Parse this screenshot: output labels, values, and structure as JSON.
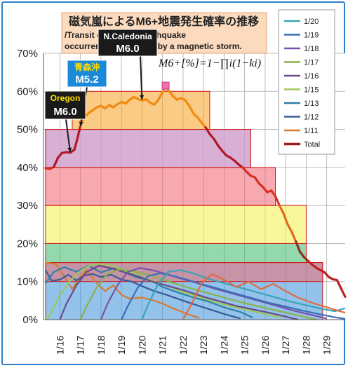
{
  "chart_data": {
    "type": "line",
    "title": "磁気嵐によるM6+地震発生確率の推移",
    "subtitle_lines": [
      "/Transit of the M6+ earthquake",
      "occurrence probability by a magnetic storm."
    ],
    "formula": "M6+[%]=1−∏i(1−ki)",
    "y_ticks": [
      "0%",
      "10%",
      "20%",
      "30%",
      "40%",
      "50%",
      "60%",
      "70%"
    ],
    "ylim": [
      0,
      70
    ],
    "x_ticks": [
      "1/16",
      "1/17",
      "1/18",
      "1/19",
      "1/20",
      "1/21",
      "1/22",
      "1/23",
      "1/24",
      "1/25",
      "1/26",
      "1/27",
      "1/28",
      "1/29"
    ],
    "xlim": [
      15.2,
      29.9
    ],
    "grid": true,
    "legend_position": "top-right",
    "legend": [
      {
        "name": "1/20",
        "color": "#3aa3b8"
      },
      {
        "name": "1/19",
        "color": "#3a6fb8"
      },
      {
        "name": "1/18",
        "color": "#7b52a8"
      },
      {
        "name": "1/17",
        "color": "#8db04a"
      },
      {
        "name": "1/16",
        "color": "#6a4a8a"
      },
      {
        "name": "1/15",
        "color": "#9bc85a"
      },
      {
        "name": "1/13",
        "color": "#2e7fa8"
      },
      {
        "name": "1/12",
        "color": "#3a5a9a"
      },
      {
        "name": "1/11",
        "color": "#d87a30"
      },
      {
        "name": "Total",
        "color": "#a01818"
      }
    ],
    "bands": [
      {
        "y0": 0,
        "y1": 15,
        "x0": 15.3,
        "x1": 28.8,
        "color": "#3b8fd8"
      },
      {
        "y0": 10,
        "y1": 15,
        "x0": 15.3,
        "x1": 28.8,
        "color": "#f07070"
      },
      {
        "y0": 15,
        "y1": 20,
        "x0": 15.3,
        "x1": 28.0,
        "color": "#3cb86a"
      },
      {
        "y0": 20,
        "y1": 30,
        "x0": 15.3,
        "x1": 28.0,
        "color": "#f4f04a"
      },
      {
        "y0": 30,
        "y1": 40,
        "x0": 15.3,
        "x1": 26.5,
        "color": "#f06070"
      },
      {
        "y0": 40,
        "y1": 50,
        "x0": 15.3,
        "x1": 25.3,
        "color": "#ff9aaa"
      },
      {
        "y0": 40,
        "y1": 50,
        "x0": 15.3,
        "x1": 25.3,
        "color": "#b89ad8"
      },
      {
        "y0": 50,
        "y1": 60,
        "x0": 16.6,
        "x1": 23.3,
        "color": "#f5a020"
      }
    ],
    "total": [
      [
        15.3,
        39.8
      ],
      [
        15.5,
        39.6
      ],
      [
        15.7,
        40.1
      ],
      [
        15.9,
        42.5
      ],
      [
        16.1,
        43.8
      ],
      [
        16.3,
        44.0
      ],
      [
        16.5,
        43.9
      ],
      [
        16.7,
        44.6
      ],
      [
        16.85,
        47.5
      ],
      [
        17.0,
        51.0
      ],
      [
        17.2,
        53.2
      ],
      [
        17.4,
        54.3
      ],
      [
        17.6,
        55.0
      ],
      [
        17.8,
        55.8
      ],
      [
        18.0,
        56.2
      ],
      [
        18.2,
        55.5
      ],
      [
        18.4,
        56.4
      ],
      [
        18.6,
        55.8
      ],
      [
        18.8,
        56.6
      ],
      [
        19.0,
        57.2
      ],
      [
        19.2,
        56.8
      ],
      [
        19.4,
        57.8
      ],
      [
        19.6,
        58.5
      ],
      [
        19.8,
        58.0
      ],
      [
        20.0,
        57.6
      ],
      [
        20.2,
        57.9
      ],
      [
        20.4,
        57.0
      ],
      [
        20.6,
        56.5
      ],
      [
        20.8,
        57.8
      ],
      [
        21.0,
        59.8
      ],
      [
        21.15,
        61.0
      ],
      [
        21.3,
        60.2
      ],
      [
        21.5,
        58.8
      ],
      [
        21.7,
        57.8
      ],
      [
        21.9,
        58.2
      ],
      [
        22.1,
        57.7
      ],
      [
        22.3,
        56.2
      ],
      [
        22.5,
        54.2
      ],
      [
        22.7,
        53.2
      ],
      [
        22.9,
        51.8
      ],
      [
        23.1,
        50.5
      ],
      [
        23.3,
        48.8
      ],
      [
        23.5,
        47.5
      ],
      [
        23.7,
        45.8
      ],
      [
        23.9,
        44.4
      ],
      [
        24.1,
        43.2
      ],
      [
        24.3,
        42.6
      ],
      [
        24.5,
        41.8
      ],
      [
        24.7,
        40.8
      ],
      [
        24.9,
        40.0
      ],
      [
        25.1,
        38.8
      ],
      [
        25.3,
        37.8
      ],
      [
        25.5,
        37.4
      ],
      [
        25.7,
        35.8
      ],
      [
        25.9,
        34.8
      ],
      [
        26.1,
        33.5
      ],
      [
        26.3,
        33.9
      ],
      [
        26.5,
        32.4
      ],
      [
        26.7,
        30.0
      ],
      [
        26.9,
        27.8
      ],
      [
        27.1,
        25.0
      ],
      [
        27.3,
        23.0
      ],
      [
        27.5,
        20.5
      ],
      [
        27.7,
        17.8
      ],
      [
        27.9,
        16.4
      ],
      [
        28.1,
        15.4
      ],
      [
        28.3,
        14.4
      ],
      [
        28.5,
        13.6
      ],
      [
        28.7,
        13.0
      ],
      [
        28.9,
        12.4
      ],
      [
        29.1,
        11.2
      ],
      [
        29.3,
        10.6
      ],
      [
        29.5,
        10.4
      ],
      [
        29.7,
        8.2
      ],
      [
        29.9,
        6.0
      ]
    ],
    "component_series": [
      {
        "color": "#d87a30",
        "points": [
          [
            15.3,
            15.0
          ],
          [
            15.8,
            14.6
          ],
          [
            16.2,
            11.5
          ],
          [
            16.6,
            8.0
          ],
          [
            16.9,
            10.5
          ],
          [
            17.3,
            13.0
          ],
          [
            17.8,
            9.5
          ],
          [
            18.2,
            7.5
          ],
          [
            18.6,
            9.0
          ],
          [
            19.0,
            6.5
          ],
          [
            19.4,
            5.5
          ],
          [
            20.0,
            5.8
          ],
          [
            20.6,
            5.0
          ],
          [
            21.0,
            4.2
          ],
          [
            21.5,
            3.0
          ],
          [
            22.2,
            1.5
          ],
          [
            22.8,
            0.4
          ]
        ]
      },
      {
        "color": "#3a5a9a",
        "points": [
          [
            15.3,
            13.0
          ],
          [
            15.6,
            10.2
          ],
          [
            16.0,
            10.5
          ],
          [
            16.4,
            11.8
          ],
          [
            16.8,
            10.3
          ],
          [
            17.2,
            11.6
          ],
          [
            17.6,
            12.0
          ],
          [
            18.0,
            11.2
          ],
          [
            18.5,
            11.8
          ],
          [
            19.0,
            10.5
          ],
          [
            19.5,
            10.0
          ],
          [
            20.0,
            8.8
          ],
          [
            20.6,
            7.5
          ],
          [
            21.2,
            6.5
          ],
          [
            22.0,
            5.0
          ],
          [
            23.0,
            3.2
          ],
          [
            24.0,
            1.5
          ],
          [
            24.8,
            0.3
          ]
        ]
      },
      {
        "color": "#2e7fa8",
        "points": [
          [
            15.3,
            9.5
          ],
          [
            15.7,
            12.5
          ],
          [
            16.2,
            13.8
          ],
          [
            16.8,
            12.6
          ],
          [
            17.4,
            14.2
          ],
          [
            18.0,
            12.4
          ],
          [
            18.6,
            13.5
          ],
          [
            19.2,
            12.3
          ],
          [
            19.8,
            11.0
          ],
          [
            20.4,
            10.4
          ],
          [
            21.0,
            8.6
          ],
          [
            21.6,
            7.4
          ],
          [
            22.4,
            6.0
          ],
          [
            23.2,
            4.8
          ],
          [
            24.0,
            3.2
          ],
          [
            24.8,
            2.0
          ],
          [
            25.4,
            0.5
          ]
        ]
      },
      {
        "color": "#9bc85a",
        "points": [
          [
            15.3,
            0.0
          ],
          [
            15.5,
            1.0
          ],
          [
            16.0,
            6.5
          ],
          [
            16.5,
            10.2
          ],
          [
            17.0,
            12.8
          ],
          [
            17.5,
            14.4
          ],
          [
            18.0,
            14.6
          ],
          [
            18.6,
            14.2
          ],
          [
            19.2,
            12.8
          ],
          [
            19.8,
            11.8
          ],
          [
            20.5,
            10.2
          ],
          [
            21.2,
            9.0
          ],
          [
            22.0,
            7.2
          ],
          [
            22.8,
            6.0
          ],
          [
            23.6,
            4.5
          ],
          [
            24.4,
            3.4
          ],
          [
            25.2,
            2.5
          ],
          [
            26.0,
            1.5
          ],
          [
            26.8,
            0.5
          ]
        ]
      },
      {
        "color": "#6a4a8a",
        "points": [
          [
            16.0,
            0.0
          ],
          [
            16.3,
            4.0
          ],
          [
            16.8,
            9.0
          ],
          [
            17.3,
            12.5
          ],
          [
            17.9,
            14.2
          ],
          [
            18.5,
            13.5
          ],
          [
            19.1,
            12.5
          ],
          [
            19.8,
            11.4
          ],
          [
            20.5,
            10.0
          ],
          [
            21.3,
            8.8
          ],
          [
            22.1,
            7.6
          ],
          [
            23.0,
            6.0
          ],
          [
            23.8,
            4.8
          ],
          [
            24.6,
            3.6
          ],
          [
            25.4,
            2.7
          ],
          [
            26.2,
            1.8
          ],
          [
            27.0,
            0.8
          ],
          [
            27.6,
            0.0
          ]
        ]
      },
      {
        "color": "#8db04a",
        "points": [
          [
            17.0,
            0.0
          ],
          [
            17.3,
            3.5
          ],
          [
            17.8,
            8.5
          ],
          [
            18.3,
            12.0
          ],
          [
            18.9,
            13.2
          ],
          [
            19.5,
            12.8
          ],
          [
            20.2,
            12.0
          ],
          [
            20.9,
            10.8
          ],
          [
            21.6,
            9.5
          ],
          [
            22.4,
            8.2
          ],
          [
            23.2,
            7.0
          ],
          [
            24.0,
            5.8
          ],
          [
            24.8,
            4.6
          ],
          [
            25.6,
            3.6
          ],
          [
            26.4,
            2.6
          ],
          [
            27.2,
            1.6
          ],
          [
            28.0,
            0.6
          ],
          [
            28.5,
            0.0
          ]
        ]
      },
      {
        "color": "#7b52a8",
        "points": [
          [
            18.0,
            0.0
          ],
          [
            18.3,
            4.0
          ],
          [
            18.8,
            9.0
          ],
          [
            19.3,
            12.5
          ],
          [
            19.9,
            13.6
          ],
          [
            20.5,
            13.0
          ],
          [
            21.2,
            12.0
          ],
          [
            21.9,
            10.8
          ],
          [
            22.7,
            9.6
          ],
          [
            23.5,
            8.2
          ],
          [
            24.3,
            7.0
          ],
          [
            25.1,
            5.8
          ],
          [
            25.9,
            4.6
          ],
          [
            26.7,
            3.4
          ],
          [
            27.5,
            2.2
          ],
          [
            28.3,
            1.2
          ],
          [
            29.0,
            0.3
          ]
        ]
      },
      {
        "color": "#3a6fb8",
        "points": [
          [
            19.0,
            0.0
          ],
          [
            19.3,
            3.5
          ],
          [
            19.8,
            8.5
          ],
          [
            20.3,
            11.5
          ],
          [
            20.9,
            12.2
          ],
          [
            21.5,
            11.5
          ],
          [
            22.2,
            10.5
          ],
          [
            23.0,
            9.2
          ],
          [
            23.8,
            8.0
          ],
          [
            24.6,
            6.8
          ],
          [
            25.4,
            5.6
          ],
          [
            26.2,
            4.4
          ],
          [
            27.0,
            3.4
          ],
          [
            27.8,
            2.4
          ],
          [
            28.6,
            1.5
          ],
          [
            29.4,
            0.6
          ],
          [
            29.9,
            0.2
          ]
        ]
      },
      {
        "color": "#3aa3b8",
        "points": [
          [
            20.0,
            0.0
          ],
          [
            20.3,
            4.0
          ],
          [
            20.8,
            9.5
          ],
          [
            21.3,
            12.6
          ],
          [
            21.9,
            13.0
          ],
          [
            22.5,
            12.2
          ],
          [
            23.2,
            10.8
          ],
          [
            24.0,
            9.6
          ],
          [
            24.8,
            8.4
          ],
          [
            25.6,
            7.2
          ],
          [
            26.4,
            6.0
          ],
          [
            27.2,
            4.8
          ],
          [
            28.0,
            3.8
          ],
          [
            28.8,
            2.8
          ],
          [
            29.4,
            2.2
          ],
          [
            29.9,
            3.0
          ]
        ]
      },
      {
        "color": "#e06a40",
        "points": [
          [
            22.0,
            0.0
          ],
          [
            22.4,
            4.0
          ],
          [
            22.9,
            9.5
          ],
          [
            23.4,
            12.0
          ],
          [
            24.0,
            10.5
          ],
          [
            24.6,
            8.6
          ],
          [
            25.2,
            10.0
          ],
          [
            25.8,
            8.0
          ],
          [
            26.4,
            9.4
          ],
          [
            27.0,
            7.5
          ],
          [
            27.6,
            5.8
          ],
          [
            28.2,
            4.6
          ],
          [
            28.8,
            3.6
          ],
          [
            29.4,
            2.6
          ],
          [
            29.9,
            1.8
          ]
        ]
      }
    ],
    "peak_marker": {
      "x": 21.15,
      "y": 61.5
    },
    "annotations": [
      {
        "top": "N.Caledonia",
        "bottom": "M6.0",
        "box": "#1a1a1a",
        "topColor": "#ffffff",
        "bottomColor": "#ffffff",
        "arrow_to": [
          20.0,
          57.8
        ]
      },
      {
        "top": "青森沖",
        "bottom": "M5.2",
        "box": "#1a8ad8",
        "topColor": "#ffe000",
        "bottomColor": "#ffffff",
        "arrow_to": [
          17.0,
          50.8
        ]
      },
      {
        "top": "Oregon",
        "bottom": "M6.0",
        "box": "#1a1a1a",
        "topColor": "#ffe000",
        "bottomColor": "#ffffff",
        "arrow_to": [
          16.5,
          44.0
        ]
      }
    ]
  }
}
